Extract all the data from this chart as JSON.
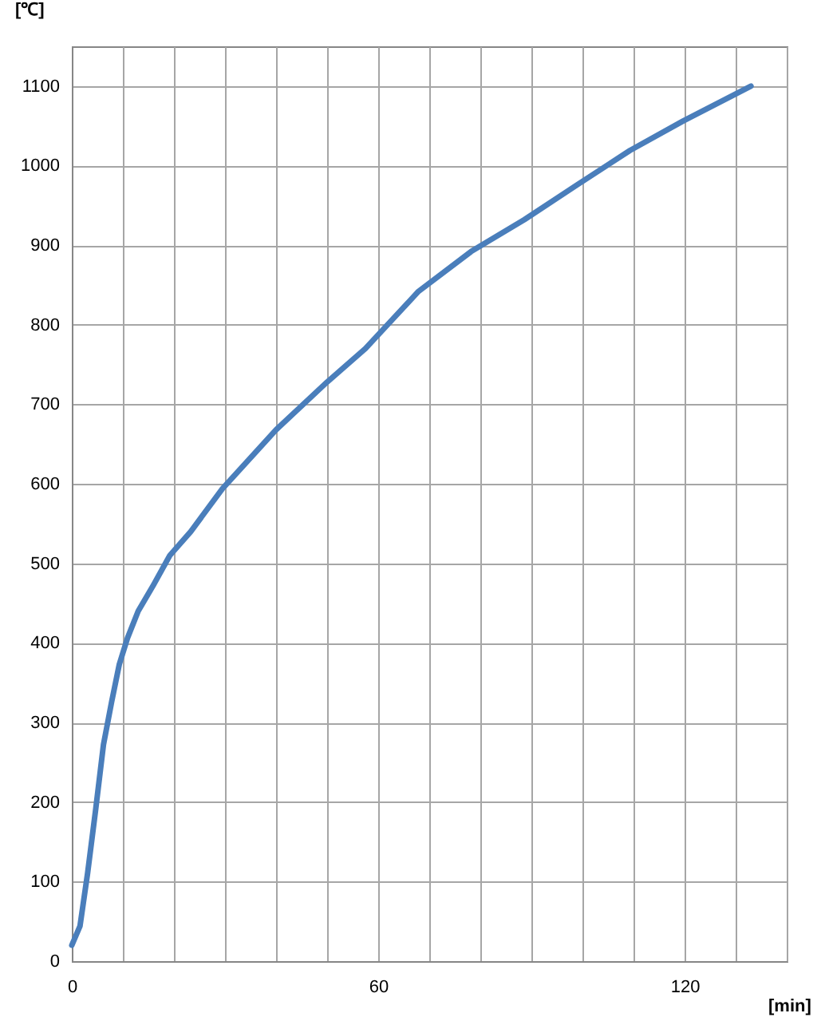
{
  "chart_data": {
    "type": "line",
    "xlabel": "[min]",
    "ylabel": "[℃]",
    "x": [
      0,
      1.6,
      3.1,
      4.7,
      6.2,
      7.8,
      9.3,
      10.9,
      13,
      16,
      19.2,
      23.3,
      29.5,
      40,
      50,
      57.5,
      67.9,
      78.2,
      88.6,
      99,
      109.3,
      119.7,
      133
    ],
    "series": [
      {
        "color": "#4a7ebb",
        "values": [
          20,
          44,
          111,
          192,
          272,
          326,
          373,
          406,
          440,
          473,
          510,
          540,
          594,
          668,
          728,
          770,
          842,
          892,
          932,
          976,
          1019,
          1056,
          1100
        ]
      }
    ],
    "xlim": [
      0,
      140
    ],
    "xticks": [
      0,
      {
        "value": 10,
        "label": null
      },
      {
        "value": 20,
        "label": null
      },
      {
        "value": 30,
        "label": null
      },
      {
        "value": 40,
        "label": null
      },
      {
        "value": 50,
        "label": null
      },
      60,
      {
        "value": 70,
        "label": null
      },
      {
        "value": 80,
        "label": null
      },
      {
        "value": 90,
        "label": null
      },
      {
        "value": 100,
        "label": null
      },
      {
        "value": 110,
        "label": null
      },
      120,
      {
        "value": 130,
        "label": null
      },
      {
        "value": 140,
        "label": null
      }
    ],
    "ylim": [
      0,
      1150
    ],
    "yticks": [
      0,
      100,
      200,
      300,
      400,
      500,
      600,
      700,
      800,
      900,
      1000,
      1100
    ],
    "grid": true,
    "marker": "none",
    "line_style": "solid"
  }
}
